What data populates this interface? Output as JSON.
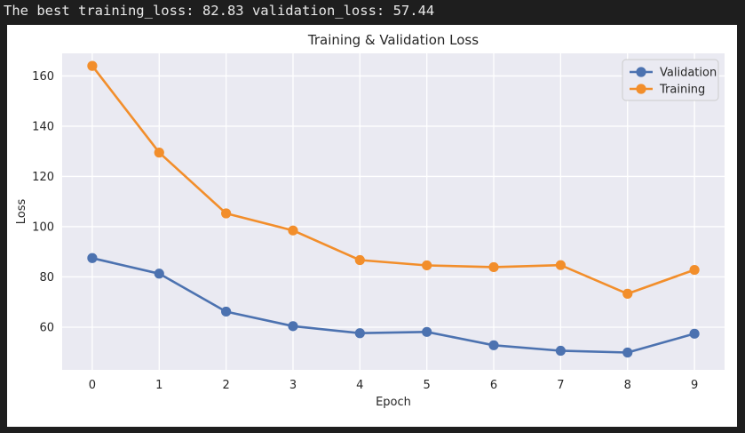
{
  "console": {
    "output": "The best training_loss: 82.83 validation_loss: 57.44"
  },
  "colors": {
    "page_bg": "#1e1e1e",
    "figure_bg": "#ffffff",
    "plot_bg": "#eaeaf2",
    "grid": "#ffffff",
    "text": "#262626",
    "validation": "#4c72b0",
    "training": "#f28e2b"
  },
  "chart_data": {
    "type": "line",
    "title": "Training & Validation Loss",
    "xlabel": "Epoch",
    "ylabel": "Loss",
    "x": [
      0,
      1,
      2,
      3,
      4,
      5,
      6,
      7,
      8,
      9
    ],
    "xlim": [
      -0.45,
      9.45
    ],
    "ylim": [
      43,
      169
    ],
    "yticks": [
      60,
      80,
      100,
      120,
      140,
      160
    ],
    "xticks": [
      0,
      1,
      2,
      3,
      4,
      5,
      6,
      7,
      8,
      9
    ],
    "grid": true,
    "legend": "top-right",
    "markers": true,
    "series": [
      {
        "name": "Validation",
        "color": "#4c72b0",
        "values": [
          87.5,
          81.3,
          66.2,
          60.4,
          57.6,
          58.1,
          52.8,
          50.6,
          49.9,
          57.4
        ]
      },
      {
        "name": "Training",
        "color": "#f28e2b",
        "values": [
          164.0,
          129.5,
          105.3,
          98.5,
          86.7,
          84.6,
          83.9,
          84.7,
          73.3,
          82.8
        ]
      }
    ]
  }
}
